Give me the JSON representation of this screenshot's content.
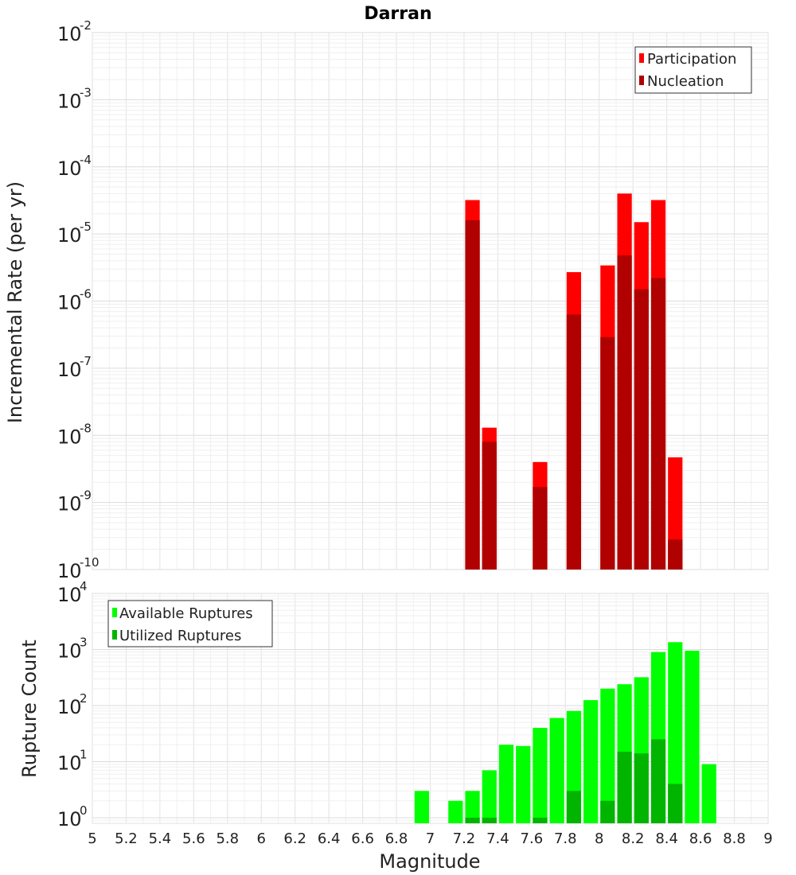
{
  "chart_data": [
    {
      "type": "bar",
      "title": "Darran",
      "xlabel": "",
      "ylabel": "Incremental Rate (per yr)",
      "xlim": [
        5,
        9
      ],
      "ylim_exponents": [
        -10,
        -2
      ],
      "yscale": "log",
      "legend_position": "top-right",
      "bin_width": 0.1,
      "y_tick_base": "10",
      "y_tick_exponents": [
        "-10",
        "-9",
        "-8",
        "-7",
        "-6",
        "-5",
        "-4",
        "-3",
        "-2"
      ],
      "series": [
        {
          "name": "Participation",
          "color": "#ff0000",
          "x": [
            7.25,
            7.35,
            7.65,
            7.85,
            8.05,
            8.15,
            8.25,
            8.35,
            8.45
          ],
          "values": [
            3.2e-05,
            1.3e-08,
            4e-09,
            2.7e-06,
            3.4e-06,
            4e-05,
            1.5e-05,
            3.2e-05,
            4.7e-09
          ]
        },
        {
          "name": "Nucleation",
          "color": "#b00000",
          "x": [
            7.25,
            7.35,
            7.65,
            7.85,
            8.05,
            8.15,
            8.25,
            8.35,
            8.45
          ],
          "values": [
            1.6e-05,
            8e-09,
            1.7e-09,
            6.3e-07,
            2.9e-07,
            4.8e-06,
            1.5e-06,
            2.2e-06,
            2.8e-10
          ]
        }
      ]
    },
    {
      "type": "bar",
      "title": "",
      "xlabel": "Magnitude",
      "ylabel": "Rupture Count",
      "xlim": [
        5,
        9
      ],
      "ylim_exponents": [
        -0.1,
        4
      ],
      "yscale": "log",
      "legend_position": "top-left",
      "bin_width": 0.1,
      "y_tick_base": "10",
      "y_tick_exponents": [
        "0",
        "1",
        "2",
        "3",
        "4"
      ],
      "x_ticks": [
        "5",
        "5.2",
        "5.4",
        "5.6",
        "5.8",
        "6",
        "6.2",
        "6.4",
        "6.6",
        "6.8",
        "7",
        "7.2",
        "7.4",
        "7.6",
        "7.8",
        "8",
        "8.2",
        "8.4",
        "8.6",
        "8.8",
        "9"
      ],
      "series": [
        {
          "name": "Available Ruptures",
          "color": "#00ff00",
          "x": [
            6.95,
            7.15,
            7.25,
            7.35,
            7.45,
            7.55,
            7.65,
            7.75,
            7.85,
            7.95,
            8.05,
            8.15,
            8.25,
            8.35,
            8.45,
            8.55,
            8.65
          ],
          "values": [
            3,
            2,
            3,
            7,
            20,
            19,
            40,
            60,
            80,
            125,
            200,
            240,
            320,
            900,
            1350,
            950,
            9
          ]
        },
        {
          "name": "Utilized Ruptures",
          "color": "#00b400",
          "x": [
            7.25,
            7.35,
            7.65,
            7.85,
            8.05,
            8.15,
            8.25,
            8.35,
            8.45
          ],
          "values": [
            1,
            1,
            1,
            3,
            2,
            15,
            14,
            25,
            4
          ]
        }
      ]
    }
  ]
}
